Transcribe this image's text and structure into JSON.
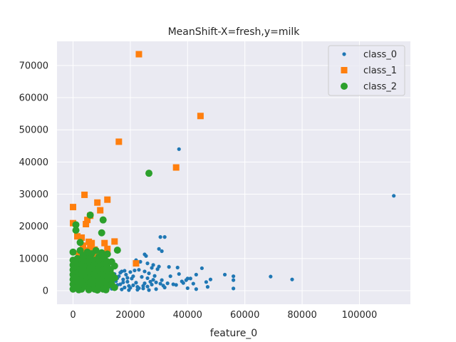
{
  "chart_data": {
    "type": "scatter",
    "title": "MeanShift-X=fresh,y=milk",
    "xlabel": "feature_0",
    "ylabel": "",
    "xlim": [
      -5600,
      117800
    ],
    "ylim": [
      -4200,
      77500
    ],
    "xticks": [
      0,
      20000,
      40000,
      60000,
      80000,
      100000
    ],
    "yticks": [
      0,
      10000,
      20000,
      30000,
      40000,
      50000,
      60000,
      70000
    ],
    "grid": true,
    "legend_position": "top-right",
    "colors": {
      "background": "#eaeaf2",
      "grid": "#ffffff",
      "class_0": "#1f77b4",
      "class_1": "#ff7f0e",
      "class_2": "#2ca02c"
    },
    "series": [
      {
        "name": "class_0",
        "marker": "circle-small",
        "points": [
          [
            112000,
            29500
          ],
          [
            37000,
            44000
          ],
          [
            30500,
            16700
          ],
          [
            32000,
            16700
          ],
          [
            30000,
            13000
          ],
          [
            31000,
            12300
          ],
          [
            25000,
            11300
          ],
          [
            25500,
            10800
          ],
          [
            22000,
            9500
          ],
          [
            23500,
            9000
          ],
          [
            26000,
            8500
          ],
          [
            28000,
            8000
          ],
          [
            30000,
            7500
          ],
          [
            33500,
            7400
          ],
          [
            36500,
            7200
          ],
          [
            45000,
            7000
          ],
          [
            53000,
            5000
          ],
          [
            56000,
            4500
          ],
          [
            69000,
            4400
          ],
          [
            76500,
            3500
          ],
          [
            56000,
            3300
          ],
          [
            48000,
            3500
          ],
          [
            43000,
            5000
          ],
          [
            41000,
            3800
          ],
          [
            40000,
            3800
          ],
          [
            39500,
            3300
          ],
          [
            38000,
            2900
          ],
          [
            46500,
            2700
          ],
          [
            36000,
            1800
          ],
          [
            40000,
            800
          ],
          [
            43000,
            500
          ],
          [
            56000,
            700
          ],
          [
            35000,
            2000
          ],
          [
            33000,
            2300
          ],
          [
            31500,
            1600
          ],
          [
            30500,
            2200
          ],
          [
            32000,
            1000
          ],
          [
            29000,
            2600
          ],
          [
            28000,
            3400
          ],
          [
            27000,
            2800
          ],
          [
            26000,
            3900
          ],
          [
            25000,
            2300
          ],
          [
            24500,
            1500
          ],
          [
            23000,
            800
          ],
          [
            22500,
            1200
          ],
          [
            22000,
            2500
          ],
          [
            21000,
            4500
          ],
          [
            20500,
            3800
          ],
          [
            19500,
            1500
          ],
          [
            19000,
            2800
          ],
          [
            18500,
            5000
          ],
          [
            18000,
            1000
          ],
          [
            17500,
            3500
          ],
          [
            17000,
            6000
          ],
          [
            16500,
            2000
          ],
          [
            16000,
            4500
          ],
          [
            15500,
            1800
          ],
          [
            15000,
            3000
          ],
          [
            14500,
            5200
          ],
          [
            14000,
            900
          ],
          [
            13500,
            2700
          ],
          [
            13000,
            4100
          ],
          [
            12500,
            1500
          ],
          [
            20000,
            5800
          ],
          [
            21500,
            6300
          ],
          [
            24000,
            4300
          ],
          [
            26500,
            5400
          ],
          [
            28500,
            4600
          ],
          [
            29500,
            6700
          ],
          [
            27500,
            7100
          ],
          [
            23000,
            6500
          ],
          [
            25000,
            6000
          ],
          [
            18000,
            6200
          ],
          [
            19000,
            4000
          ],
          [
            16500,
            5600
          ],
          [
            15500,
            3900
          ],
          [
            14000,
            2100
          ],
          [
            13500,
            600
          ],
          [
            17000,
            400
          ],
          [
            19500,
            200
          ],
          [
            22500,
            300
          ],
          [
            24500,
            700
          ],
          [
            26000,
            1300
          ],
          [
            27500,
            1900
          ],
          [
            31000,
            3300
          ],
          [
            34000,
            4500
          ],
          [
            37000,
            5200
          ],
          [
            38500,
            2400
          ],
          [
            42000,
            2200
          ],
          [
            47000,
            1200
          ],
          [
            29000,
            500
          ],
          [
            26500,
            200
          ],
          [
            21000,
            1700
          ],
          [
            20000,
            900
          ],
          [
            17500,
            2600
          ],
          [
            15000,
            1200
          ]
        ]
      },
      {
        "name": "class_1",
        "marker": "square",
        "points": [
          [
            23000,
            73500
          ],
          [
            44500,
            54300
          ],
          [
            16000,
            46300
          ],
          [
            36000,
            38300
          ],
          [
            0,
            26000
          ],
          [
            4000,
            29800
          ],
          [
            12000,
            28300
          ],
          [
            8500,
            27400
          ],
          [
            9500,
            25000
          ],
          [
            6000,
            23300
          ],
          [
            5000,
            22000
          ],
          [
            4500,
            20700
          ],
          [
            0,
            21000
          ],
          [
            22000,
            8500
          ],
          [
            14500,
            15300
          ],
          [
            11000,
            14800
          ],
          [
            12000,
            13000
          ],
          [
            1500,
            16900
          ],
          [
            3000,
            16500
          ],
          [
            3500,
            14000
          ],
          [
            5500,
            15200
          ],
          [
            6500,
            14800
          ],
          [
            7500,
            12800
          ],
          [
            8000,
            11000
          ],
          [
            2000,
            11500
          ],
          [
            4000,
            12500
          ],
          [
            6000,
            13500
          ]
        ]
      },
      {
        "name": "class_2",
        "marker": "circle",
        "points": [
          [
            26500,
            36500
          ],
          [
            6000,
            23500
          ],
          [
            10500,
            22000
          ],
          [
            1000,
            20500
          ],
          [
            10000,
            18000
          ],
          [
            1000,
            18800
          ],
          [
            2500,
            15000
          ],
          [
            15500,
            12600
          ],
          [
            10000,
            11800
          ],
          [
            12000,
            11400
          ],
          [
            0,
            12000
          ],
          [
            13500,
            9000
          ],
          [
            14500,
            7700
          ],
          [
            13000,
            6500
          ],
          [
            11500,
            8000
          ],
          [
            0,
            9500
          ],
          [
            0,
            8000
          ],
          [
            0,
            6500
          ],
          [
            0,
            5000
          ],
          [
            0,
            3500
          ],
          [
            0,
            2000
          ],
          [
            0,
            500
          ],
          [
            1500,
            10000
          ],
          [
            1500,
            8500
          ],
          [
            1500,
            7000
          ],
          [
            1500,
            5500
          ],
          [
            1500,
            4000
          ],
          [
            1500,
            2500
          ],
          [
            1500,
            1000
          ],
          [
            3000,
            9500
          ],
          [
            3000,
            8000
          ],
          [
            3000,
            6500
          ],
          [
            3000,
            5000
          ],
          [
            3000,
            3500
          ],
          [
            3000,
            2000
          ],
          [
            3000,
            500
          ],
          [
            4500,
            10500
          ],
          [
            4500,
            9000
          ],
          [
            4500,
            7500
          ],
          [
            4500,
            6000
          ],
          [
            4500,
            4500
          ],
          [
            4500,
            3000
          ],
          [
            4500,
            1500
          ],
          [
            6000,
            10000
          ],
          [
            6000,
            8500
          ],
          [
            6000,
            7000
          ],
          [
            6000,
            5500
          ],
          [
            6000,
            4000
          ],
          [
            6000,
            2500
          ],
          [
            6000,
            1000
          ],
          [
            7500,
            9500
          ],
          [
            7500,
            8000
          ],
          [
            7500,
            6500
          ],
          [
            7500,
            5000
          ],
          [
            7500,
            3500
          ],
          [
            7500,
            2000
          ],
          [
            7500,
            500
          ],
          [
            9000,
            10500
          ],
          [
            9000,
            9000
          ],
          [
            9000,
            7500
          ],
          [
            9000,
            6000
          ],
          [
            9000,
            4500
          ],
          [
            9000,
            3000
          ],
          [
            9000,
            1500
          ],
          [
            10500,
            9500
          ],
          [
            10500,
            8000
          ],
          [
            10500,
            6500
          ],
          [
            10500,
            5000
          ],
          [
            10500,
            3500
          ],
          [
            10500,
            2000
          ],
          [
            10500,
            500
          ],
          [
            12000,
            9000
          ],
          [
            12000,
            7500
          ],
          [
            12000,
            6000
          ],
          [
            12000,
            4500
          ],
          [
            12000,
            3000
          ],
          [
            12000,
            1500
          ],
          [
            13500,
            5000
          ],
          [
            13500,
            3500
          ],
          [
            13500,
            2000
          ],
          [
            2500,
            12500
          ],
          [
            5000,
            12000
          ],
          [
            8000,
            12500
          ],
          [
            3500,
            11000
          ],
          [
            6500,
            11500
          ],
          [
            11000,
            10500
          ],
          [
            14500,
            4000
          ],
          [
            14500,
            1000
          ],
          [
            2000,
            300
          ],
          [
            5500,
            300
          ],
          [
            8500,
            200
          ],
          [
            11500,
            300
          ]
        ]
      }
    ]
  }
}
